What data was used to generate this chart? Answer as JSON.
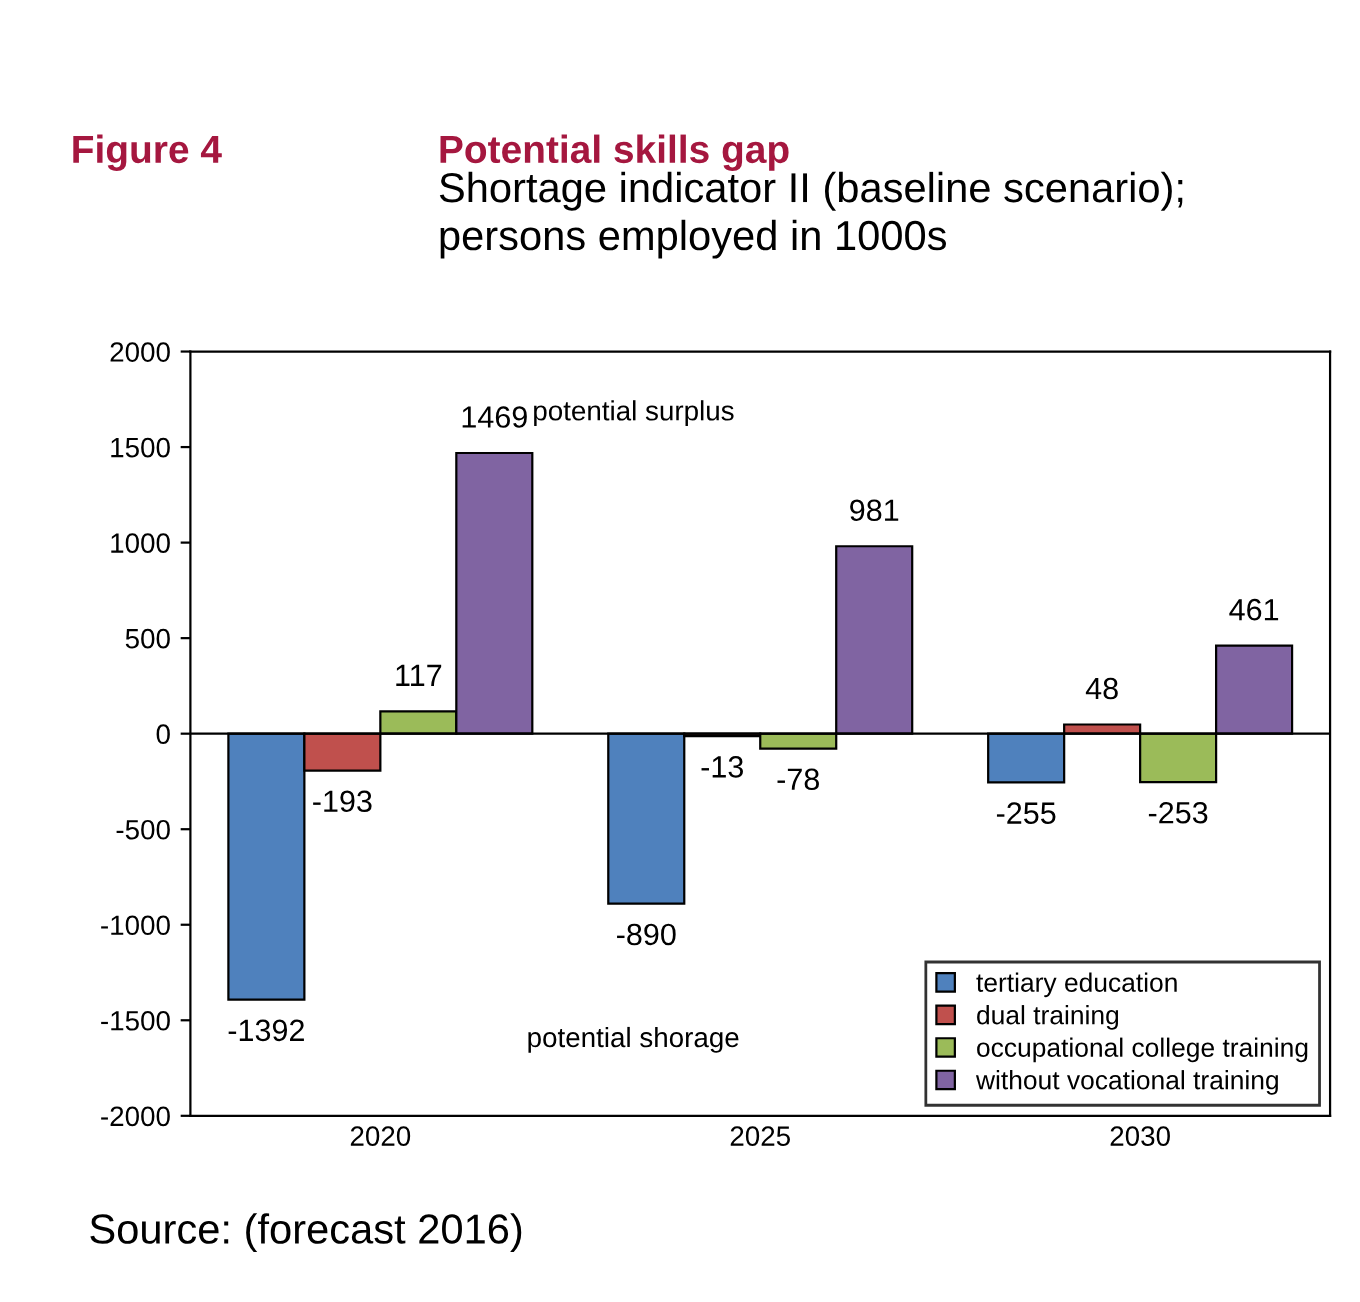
{
  "chart_data": {
    "type": "bar",
    "title": "Potential skills gap",
    "subtitle": "Shortage indicator II (baseline scenario);\npersons employed in 1000s",
    "annotations": [
      "Figure 4",
      "potential surplus",
      "potential shorage",
      "Source: (forecast 2016)"
    ],
    "categories": [
      "2020",
      "2025",
      "2030"
    ],
    "series": [
      {
        "name": "tertiary education",
        "color": "#4f81bd",
        "values": [
          -1392,
          -890,
          -255
        ]
      },
      {
        "name": "dual training",
        "color": "#c0504d",
        "values": [
          -193,
          -13,
          48
        ]
      },
      {
        "name": "occupational college training",
        "color": "#9bbb59",
        "values": [
          117,
          -78,
          -253
        ]
      },
      {
        "name": "without vocational training",
        "color": "#8064a2",
        "values": [
          1469,
          981,
          461
        ]
      }
    ],
    "ylim": [
      -2000,
      2000
    ],
    "yticks": [
      -2000,
      -1500,
      -1000,
      -500,
      0,
      500,
      1000,
      1500,
      2000
    ],
    "ref_lines": [
      {
        "axis": "y",
        "value": 0,
        "color": "#000000"
      }
    ],
    "data_labels": true,
    "grid": false,
    "legend": "bottom right"
  }
}
